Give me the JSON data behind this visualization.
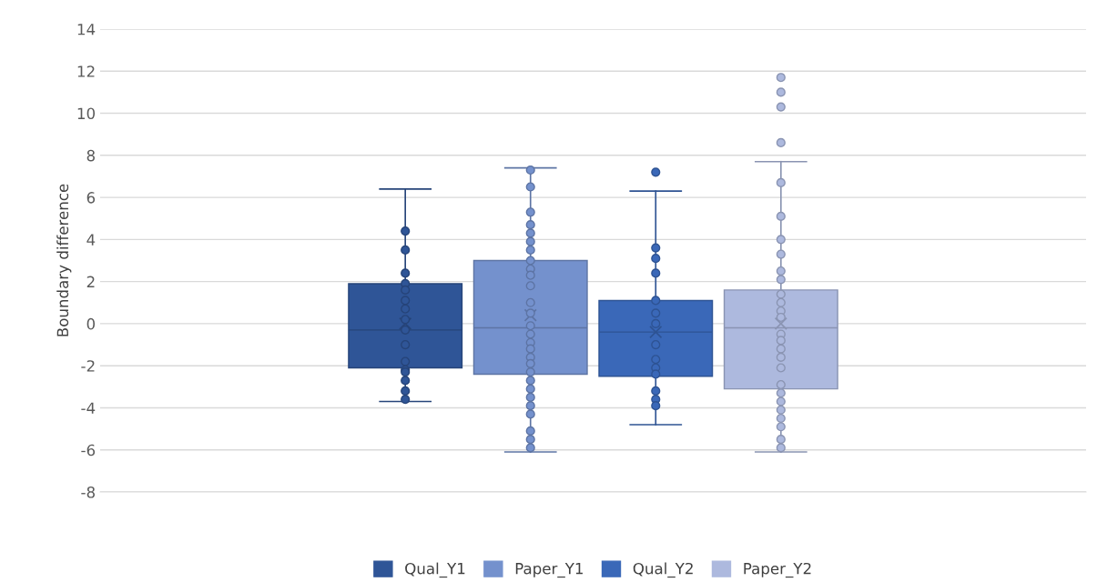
{
  "chart_data": {
    "type": "box",
    "ylabel": "Boundary difference",
    "categories": [
      null
    ],
    "ylim": [
      -8,
      14
    ],
    "yticks": [
      -8,
      -6,
      -4,
      -2,
      0,
      2,
      4,
      6,
      8,
      10,
      12,
      14
    ],
    "grid": "y",
    "legend": "bottom",
    "tick_labels": "y",
    "series": [
      {
        "name": "Qual_Y1",
        "color": "#2f5597",
        "boxes": [
          {
            "low": -3.7,
            "q1": -2.1,
            "median": -0.3,
            "q3": 1.9,
            "high": 6.4,
            "mean": 0.0,
            "outliers": [
              4.4,
              3.5,
              2.4,
              1.9,
              1.6,
              1.1,
              0.7,
              0.2,
              -0.3,
              -1.0,
              -1.8,
              -2.2,
              -2.3,
              -2.7,
              -3.2,
              -3.6
            ]
          }
        ]
      },
      {
        "name": "Paper_Y1",
        "color": "#7491cd",
        "boxes": [
          {
            "low": -6.1,
            "q1": -2.4,
            "median": -0.2,
            "q3": 3.0,
            "high": 7.4,
            "mean": 0.4,
            "outliers": [
              7.3,
              6.5,
              5.3,
              4.7,
              4.3,
              3.9,
              3.5,
              3.0,
              2.6,
              2.3,
              1.8,
              1.0,
              0.5,
              -0.1,
              -0.5,
              -0.9,
              -1.2,
              -1.6,
              -1.9,
              -2.3,
              -2.7,
              -3.1,
              -3.5,
              -3.9,
              -4.3,
              -5.1,
              -5.5,
              -5.9
            ]
          }
        ]
      },
      {
        "name": "Qual_Y2",
        "color": "#3a68b8",
        "boxes": [
          {
            "low": -4.8,
            "q1": -2.5,
            "median": -0.4,
            "q3": 1.1,
            "high": 6.3,
            "mean": -0.4,
            "outliers": [
              7.2,
              3.6,
              3.1,
              2.4,
              1.1,
              0.5,
              0.0,
              -1.0,
              -1.7,
              -2.1,
              -2.4,
              -3.2,
              -3.6,
              -3.9
            ]
          }
        ]
      },
      {
        "name": "Paper_Y2",
        "color": "#adb9de",
        "boxes": [
          {
            "low": -6.1,
            "q1": -3.1,
            "median": -0.2,
            "q3": 1.6,
            "high": 7.7,
            "mean": 0.0,
            "outliers": [
              11.7,
              11.0,
              10.3,
              8.6,
              6.7,
              5.1,
              4.0,
              3.3,
              2.5,
              2.1,
              1.4,
              1.0,
              0.6,
              0.3,
              -0.5,
              -0.8,
              -1.2,
              -1.6,
              -2.1,
              -2.9,
              -3.3,
              -3.7,
              -4.1,
              -4.5,
              -4.9,
              -5.5,
              -5.9
            ]
          }
        ]
      }
    ]
  }
}
